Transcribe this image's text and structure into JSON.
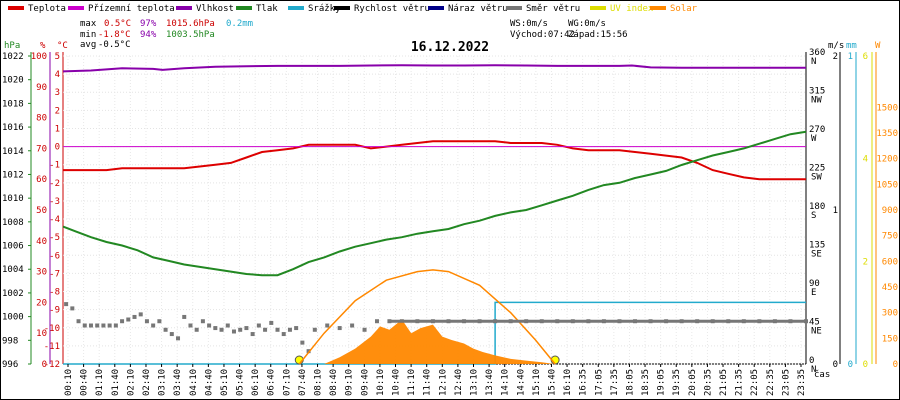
{
  "chart_data": {
    "type": "line",
    "title": "16.12.2022",
    "legend": [
      {
        "name": "Teplota",
        "color": "#dd0000"
      },
      {
        "name": "Přízemní teplota",
        "color": "#cc00cc"
      },
      {
        "name": "Vlhkost",
        "color": "#8800aa"
      },
      {
        "name": "Tlak",
        "color": "#228822"
      },
      {
        "name": "Srážky",
        "color": "#22aacc"
      },
      {
        "name": "Rychlost větru",
        "color": "#000000"
      },
      {
        "name": "Náraz větru",
        "color": "#000088"
      },
      {
        "name": "Směr větru",
        "color": "#777777"
      },
      {
        "name": "UV index",
        "color": "#dddd00"
      },
      {
        "name": "Solar",
        "color": "#ff8800"
      }
    ],
    "stats": {
      "max_label": "max",
      "max_temp": "0.5°C",
      "max_hum": "97%",
      "max_press": "1015.6hPa",
      "max_rain": "0.2mm",
      "min_label": "min",
      "min_temp": "-1.8°C",
      "min_hum": "94%",
      "min_press": "1003.5hPa",
      "avg_label": "avg",
      "avg_temp": "-0.5°C"
    },
    "wind_info": {
      "ws": "WS:0m/s",
      "wg": "WG:0m/s",
      "sunrise": "Východ:07:42",
      "sunset": "Západ:15:56"
    },
    "axes": {
      "hpa": {
        "unit": "hPa",
        "ticks": [
          996,
          998,
          1000,
          1002,
          1004,
          1006,
          1008,
          1010,
          1012,
          1014,
          1016,
          1018,
          1020,
          1022
        ],
        "range": [
          996,
          1022
        ],
        "color": "#228822"
      },
      "percent": {
        "unit": "%",
        "ticks": [
          0,
          10,
          20,
          30,
          40,
          50,
          60,
          70,
          80,
          90,
          100
        ],
        "range": [
          0,
          100
        ],
        "color": "#cc0000"
      },
      "celsius": {
        "unit": "°C",
        "ticks": [
          -12,
          -11,
          -10,
          -9,
          -8,
          -7,
          -6,
          -5,
          -4,
          -3,
          -2,
          -1,
          0,
          1,
          2,
          3,
          4,
          5
        ],
        "range": [
          -12,
          5
        ],
        "color": "#cc0000"
      },
      "direction": {
        "ticks": [
          {
            "v": 0,
            "l": "0",
            "d": "N"
          },
          {
            "v": 45,
            "l": "45",
            "d": "NE"
          },
          {
            "v": 90,
            "l": "90",
            "d": "E"
          },
          {
            "v": 135,
            "l": "135",
            "d": "SE"
          },
          {
            "v": 180,
            "l": "180",
            "d": "S"
          },
          {
            "v": 225,
            "l": "225",
            "d": "SW"
          },
          {
            "v": 270,
            "l": "270",
            "d": "W"
          },
          {
            "v": 315,
            "l": "315",
            "d": "NW"
          },
          {
            "v": 360,
            "l": "360",
            "d": "N"
          }
        ],
        "range": [
          0,
          360
        ]
      },
      "ms": {
        "unit": "m/s",
        "ticks": [
          0,
          1,
          2
        ],
        "range": [
          0,
          2
        ]
      },
      "mm": {
        "unit": "mm",
        "ticks": [
          0,
          1
        ],
        "range": [
          0,
          1
        ]
      },
      "uv": {
        "unit": "W",
        "ticks": [
          0,
          2,
          4,
          6
        ],
        "range": [
          0,
          6
        ]
      },
      "solar": {
        "ticks": [
          0,
          150,
          300,
          450,
          600,
          750,
          900,
          1050,
          1200,
          1350,
          1500
        ],
        "range": [
          0,
          1800
        ]
      }
    },
    "x_label": "čas",
    "x_ticks": [
      "00:10",
      "00:40",
      "01:10",
      "01:40",
      "02:10",
      "02:40",
      "03:10",
      "03:40",
      "04:10",
      "04:40",
      "05:10",
      "05:40",
      "06:10",
      "06:40",
      "07:10",
      "07:40",
      "08:10",
      "08:40",
      "09:10",
      "09:40",
      "10:10",
      "10:40",
      "11:10",
      "11:40",
      "12:10",
      "12:40",
      "13:10",
      "13:40",
      "14:10",
      "14:40",
      "15:10",
      "15:40",
      "16:10",
      "16:35",
      "17:05",
      "17:35",
      "18:05",
      "18:35",
      "19:05",
      "19:35",
      "20:05",
      "20:35",
      "21:05",
      "21:35",
      "22:05",
      "22:35",
      "23:05",
      "23:35"
    ],
    "x_range_hours": [
      0.1,
      24
    ],
    "sunrise_hour": 7.7,
    "sunset_hour": 15.93,
    "series": [
      {
        "name": "Teplota",
        "axis": "celsius",
        "color": "#dd0000",
        "x": [
          0.1,
          1.0,
          1.5,
          2.0,
          2.5,
          3.0,
          3.5,
          4.0,
          4.5,
          5.0,
          5.5,
          6.0,
          6.5,
          7.0,
          7.5,
          8.0,
          8.5,
          9.0,
          9.5,
          10.0,
          10.5,
          11.0,
          11.5,
          12.0,
          12.5,
          13.0,
          13.5,
          14.0,
          14.5,
          15.0,
          15.5,
          16.0,
          16.5,
          17.0,
          17.5,
          18.0,
          18.5,
          19.0,
          19.5,
          20.0,
          20.5,
          21.0,
          21.5,
          22.0,
          22.5,
          23.0,
          23.5,
          24.0
        ],
        "y": [
          -1.3,
          -1.3,
          -1.3,
          -1.2,
          -1.2,
          -1.2,
          -1.2,
          -1.2,
          -1.1,
          -1.0,
          -0.9,
          -0.6,
          -0.3,
          -0.2,
          -0.1,
          0.1,
          0.1,
          0.1,
          0.1,
          -0.1,
          0.0,
          0.1,
          0.2,
          0.3,
          0.3,
          0.3,
          0.3,
          0.3,
          0.2,
          0.2,
          0.2,
          0.1,
          -0.1,
          -0.2,
          -0.2,
          -0.2,
          -0.3,
          -0.4,
          -0.5,
          -0.6,
          -0.9,
          -1.3,
          -1.5,
          -1.7,
          -1.8,
          -1.8,
          -1.8,
          -1.8
        ]
      },
      {
        "name": "Přízemní teplota",
        "axis": "celsius",
        "color": "#cc00cc",
        "x": [
          0.1,
          24.0
        ],
        "y": [
          0.0,
          0.0
        ]
      },
      {
        "name": "Vlhkost",
        "axis": "percent",
        "color": "#8800aa",
        "x": [
          0.1,
          1.0,
          2.0,
          3.0,
          3.3,
          4.0,
          5.0,
          6.0,
          7.0,
          8.0,
          9.0,
          10.0,
          11.0,
          12.0,
          13.0,
          14.0,
          15.0,
          16.0,
          17.0,
          18.0,
          18.4,
          19.0,
          20.0,
          21.0,
          22.0,
          23.0,
          24.0
        ],
        "y": [
          95.0,
          95.3,
          96.0,
          95.8,
          95.5,
          96.0,
          96.5,
          96.7,
          96.8,
          96.8,
          96.8,
          96.9,
          97.0,
          96.9,
          96.9,
          97.0,
          96.9,
          96.8,
          96.8,
          96.8,
          96.9,
          96.3,
          96.2,
          96.2,
          96.2,
          96.2,
          96.2
        ]
      },
      {
        "name": "Tlak",
        "axis": "hpa",
        "color": "#228822",
        "x": [
          0.1,
          0.5,
          1.0,
          1.5,
          2.0,
          2.5,
          3.0,
          3.5,
          4.0,
          4.5,
          5.0,
          5.5,
          6.0,
          6.5,
          7.0,
          7.5,
          8.0,
          8.5,
          9.0,
          9.5,
          10.0,
          10.5,
          11.0,
          11.5,
          12.0,
          12.5,
          13.0,
          13.5,
          14.0,
          14.5,
          15.0,
          15.5,
          16.0,
          16.5,
          17.0,
          17.5,
          18.0,
          18.5,
          19.0,
          19.5,
          20.0,
          20.5,
          21.0,
          21.5,
          22.0,
          22.5,
          23.0,
          23.5,
          24.0
        ],
        "y": [
          1007.6,
          1007.2,
          1006.7,
          1006.3,
          1006.0,
          1005.6,
          1005.0,
          1004.7,
          1004.4,
          1004.2,
          1004.0,
          1003.8,
          1003.6,
          1003.5,
          1003.5,
          1004.0,
          1004.6,
          1005.0,
          1005.5,
          1005.9,
          1006.2,
          1006.5,
          1006.7,
          1007.0,
          1007.2,
          1007.4,
          1007.8,
          1008.1,
          1008.5,
          1008.8,
          1009.0,
          1009.4,
          1009.8,
          1010.2,
          1010.7,
          1011.1,
          1011.3,
          1011.7,
          1012.0,
          1012.3,
          1012.8,
          1013.2,
          1013.6,
          1013.9,
          1014.2,
          1014.6,
          1015.0,
          1015.4,
          1015.6
        ]
      },
      {
        "name": "Srážky",
        "axis": "mm",
        "color": "#22aacc",
        "x": [
          0.1,
          14.0,
          14.0,
          24.0
        ],
        "y": [
          0.0,
          0.0,
          0.2,
          0.2
        ]
      },
      {
        "name": "Směr větru",
        "axis": "direction",
        "color": "#777777",
        "style": "dots",
        "x": [
          0.2,
          0.4,
          0.6,
          0.8,
          1.0,
          1.2,
          1.4,
          1.6,
          1.8,
          2.0,
          2.2,
          2.4,
          2.6,
          2.8,
          3.0,
          3.2,
          3.4,
          3.6,
          3.8,
          4.0,
          4.2,
          4.4,
          4.6,
          4.8,
          5.0,
          5.2,
          5.4,
          5.6,
          5.8,
          6.0,
          6.2,
          6.4,
          6.6,
          6.8,
          7.0,
          7.2,
          7.4,
          7.6,
          7.8,
          8.0,
          8.2,
          8.6,
          9.0,
          9.4,
          9.8,
          10.2,
          10.6,
          11.0,
          11.5,
          12.0,
          12.5,
          13.0,
          13.5,
          14.0,
          14.5,
          15.0,
          15.5,
          16.0,
          16.5,
          17.0,
          17.5,
          18.0,
          18.5,
          19.0,
          19.5,
          20.0,
          20.5,
          21.0,
          21.5,
          22.0,
          22.5,
          23.0,
          23.5,
          24.0
        ],
        "y": [
          70,
          65,
          50,
          45,
          45,
          45,
          45,
          45,
          45,
          50,
          52,
          55,
          58,
          50,
          45,
          50,
          40,
          35,
          30,
          55,
          45,
          40,
          50,
          45,
          42,
          40,
          45,
          38,
          40,
          42,
          35,
          45,
          40,
          48,
          40,
          35,
          40,
          42,
          25,
          15,
          40,
          45,
          42,
          45,
          40,
          50,
          50,
          50,
          50,
          50,
          50,
          50,
          50,
          50,
          50,
          50,
          50,
          50,
          50,
          50,
          50,
          50,
          50,
          50,
          50,
          50,
          50,
          50,
          50,
          50,
          50,
          50,
          50,
          50
        ]
      },
      {
        "name": "UV index",
        "axis": "uv",
        "color": "#dddd00",
        "style": "markers",
        "x": [
          7.7,
          15.93
        ],
        "y": [
          0,
          0
        ]
      },
      {
        "name": "Solar",
        "axis": "solar",
        "color": "#ff8800",
        "style": "area",
        "x": [
          8.5,
          9.0,
          9.5,
          10.0,
          10.3,
          10.6,
          11.0,
          11.3,
          11.6,
          12.0,
          12.3,
          12.6,
          13.0,
          13.3,
          13.6,
          14.0,
          14.5,
          15.0,
          15.5,
          15.9
        ],
        "y": [
          0,
          40,
          90,
          160,
          220,
          200,
          260,
          180,
          210,
          230,
          160,
          140,
          120,
          90,
          70,
          50,
          30,
          20,
          10,
          0
        ]
      },
      {
        "name": "Solar max",
        "axis": "solar",
        "color": "#ff8800",
        "style": "curve",
        "x": [
          7.7,
          8.5,
          9.5,
          10.5,
          11.5,
          12.0,
          12.5,
          13.5,
          14.5,
          15.3,
          15.93
        ],
        "y": [
          0,
          180,
          370,
          490,
          540,
          550,
          540,
          460,
          300,
          140,
          0
        ]
      }
    ]
  }
}
